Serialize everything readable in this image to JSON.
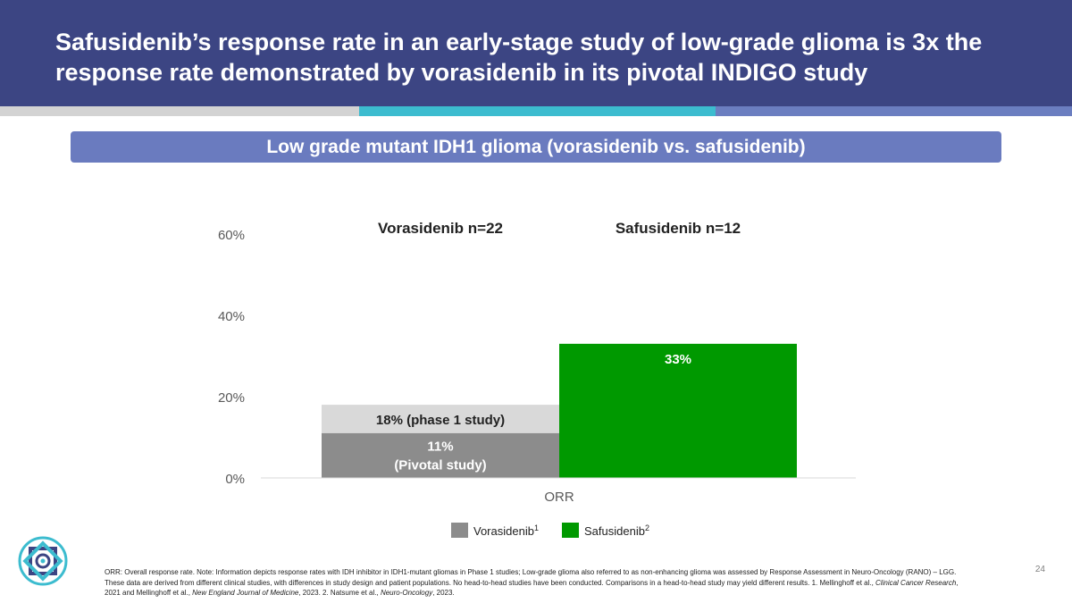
{
  "header": {
    "title": "Safusidenib’s response rate in an early-stage study of low-grade glioma is 3x the response rate demonstrated by vorasidenib in its pivotal INDIGO study"
  },
  "subtitle": "Low grade mutant IDH1 glioma (vorasidenib vs. safusidenib)",
  "chart_data": {
    "type": "bar",
    "title": "Low grade mutant IDH1 glioma (vorasidenib vs. safusidenib)",
    "categories": [
      "ORR"
    ],
    "xlabel": "",
    "ylabel": "",
    "ylim": [
      0,
      60
    ],
    "y_ticks": [
      0,
      20,
      40,
      60
    ],
    "y_tick_labels": [
      "0%",
      "20%",
      "40%",
      "60%"
    ],
    "grid": false,
    "series": [
      {
        "name": "Vorasidenib",
        "superscript": "1",
        "color": "#8c8c8c",
        "header": "Vorasidenib n=22",
        "segments": [
          {
            "value": 11,
            "color": "#8c8c8c",
            "label_lines": [
              "11%",
              "(Pivotal study)"
            ],
            "label_color": "#ffffff"
          },
          {
            "value": 18,
            "color": "#d9d9d9",
            "label_lines": [
              "18% (phase 1 study)"
            ],
            "label_color": "#222222",
            "cumulative": true
          }
        ]
      },
      {
        "name": "Safusidenib",
        "superscript": "2",
        "color": "#009900",
        "header": "Safusidenib n=12",
        "segments": [
          {
            "value": 33,
            "color": "#009900",
            "label_lines": [
              "33%"
            ],
            "label_color": "#ffffff"
          }
        ]
      }
    ],
    "legend_position": "bottom"
  },
  "footnote": {
    "p1": "ORR: Overall response rate. Note: Information depicts response rates with IDH inhibitor in IDH1-mutant gliomas in Phase 1 studies; Low-grade glioma also referred to as non-enhancing glioma was assessed by Response Assessment in Neuro-Oncology (RANO) – LGG. These data are derived from different clinical studies, with differences in study design and patient populations. No head-to-head studies have been conducted. Comparisons in a head-to-head study may yield different results. 1. Mellinghoff et al., ",
    "j1": "Clinical Cancer Research",
    "p2": ", 2021 and Mellinghoff et al., ",
    "j2": "New England Journal of Medicine",
    "p3": ", 2023. 2. Natsume et al., ",
    "j3": "Neuro-Oncology",
    "p4": ", 2023."
  },
  "page_number": "24",
  "colors": {
    "header_bg": "#3c4583",
    "subtitle_bg": "#6a7bbf",
    "stripe_grey": "#d3d3d3",
    "stripe_teal": "#3cbccf",
    "stripe_blue": "#6b7ec0",
    "logo_teal": "#3cbccf",
    "logo_navy": "#3c4583"
  }
}
